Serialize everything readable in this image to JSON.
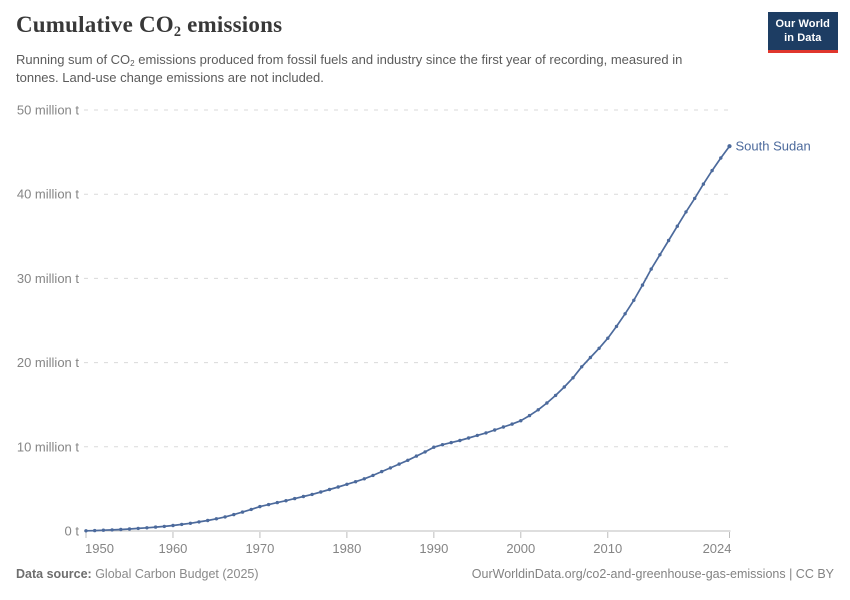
{
  "header": {
    "title": {
      "pre": "Cumulative CO",
      "sub": "2",
      "post": " emissions"
    },
    "subtitle": {
      "pre": "Running sum of CO",
      "sub": "2",
      "post": " emissions produced from fossil fuels and industry since the first year of recording, measured in tonnes. Land-use change emissions are not included."
    }
  },
  "logo": {
    "line1": "Our World",
    "line2": "in Data",
    "bg_color": "#1d3d63",
    "accent_color": "#e0362d"
  },
  "chart_data": {
    "type": "line",
    "title": "Cumulative CO₂ emissions",
    "unit": "tonnes",
    "values_unit": "million tonnes",
    "grid": "horizontal dashed",
    "legend_position": "end-of-line label",
    "xlim": [
      1950,
      2024
    ],
    "ylim": [
      0,
      50
    ],
    "x_ticks": [
      1950,
      1960,
      1970,
      1980,
      1990,
      2000,
      2010,
      2024
    ],
    "y_ticks": [
      {
        "value": 0,
        "label": "0 t"
      },
      {
        "value": 10,
        "label": "10 million t"
      },
      {
        "value": 20,
        "label": "20 million t"
      },
      {
        "value": 30,
        "label": "30 million t"
      },
      {
        "value": 40,
        "label": "40 million t"
      },
      {
        "value": 50,
        "label": "50 million t"
      }
    ],
    "x": [
      1950,
      1951,
      1952,
      1953,
      1954,
      1955,
      1956,
      1957,
      1958,
      1959,
      1960,
      1961,
      1962,
      1963,
      1964,
      1965,
      1966,
      1967,
      1968,
      1969,
      1970,
      1971,
      1972,
      1973,
      1974,
      1975,
      1976,
      1977,
      1978,
      1979,
      1980,
      1981,
      1982,
      1983,
      1984,
      1985,
      1986,
      1987,
      1988,
      1989,
      1990,
      1991,
      1992,
      1993,
      1994,
      1995,
      1996,
      1997,
      1998,
      1999,
      2000,
      2001,
      2002,
      2003,
      2004,
      2005,
      2006,
      2007,
      2008,
      2009,
      2010,
      2011,
      2012,
      2013,
      2014,
      2015,
      2016,
      2017,
      2018,
      2019,
      2020,
      2021,
      2022,
      2023,
      2024
    ],
    "series": [
      {
        "name": "South Sudan",
        "color": "#4C6A9C",
        "values": [
          0.02,
          0.05,
          0.09,
          0.13,
          0.18,
          0.24,
          0.31,
          0.38,
          0.46,
          0.55,
          0.65,
          0.78,
          0.92,
          1.08,
          1.25,
          1.45,
          1.68,
          1.95,
          2.25,
          2.56,
          2.9,
          3.13,
          3.37,
          3.6,
          3.85,
          4.1,
          4.35,
          4.63,
          4.93,
          5.23,
          5.55,
          5.85,
          6.2,
          6.6,
          7.05,
          7.5,
          7.95,
          8.4,
          8.9,
          9.4,
          9.95,
          10.25,
          10.5,
          10.75,
          11.05,
          11.35,
          11.65,
          12.0,
          12.35,
          12.7,
          13.1,
          13.7,
          14.4,
          15.2,
          16.1,
          17.1,
          18.2,
          19.5,
          20.6,
          21.7,
          22.9,
          24.3,
          25.8,
          27.4,
          29.2,
          31.1,
          32.8,
          34.5,
          36.2,
          37.9,
          39.5,
          41.2,
          42.8,
          44.3,
          45.7
        ]
      }
    ]
  },
  "style": {
    "grid_color": "#dadada",
    "axis_color": "#bdbdbd",
    "tick_label_color": "#858585"
  },
  "footer": {
    "source_label": "Data source:",
    "source_value": " Global Carbon Budget (2025)",
    "link": "OurWorldinData.org/co2-and-greenhouse-gas-emissions | CC BY"
  }
}
